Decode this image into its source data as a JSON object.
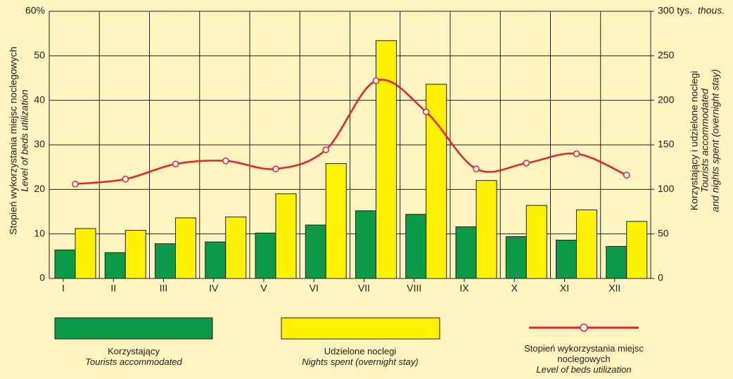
{
  "chart_data": {
    "type": "bar_line",
    "y_title": "Stopień wykorzystania miejsc noclegowych",
    "y_title_en": "Level of beds utilization",
    "y2_title": "Korzystający i udzielone noclegi",
    "y2_title_en": "Tourists accommodated",
    "y2_title_en2": "and nights spent (overnight stay)",
    "y2_unit_en": "thous.",
    "categories": [
      "I",
      "II",
      "III",
      "IV",
      "V",
      "VI",
      "VII",
      "VIII",
      "IX",
      "X",
      "XI",
      "XII"
    ],
    "series": [
      {
        "name": "Korzystający",
        "name_en": "Tourists accommodated",
        "color": "#0a9a48",
        "axis": "y2",
        "values": [
          32,
          29,
          39,
          41,
          51,
          60,
          76,
          72,
          58,
          47,
          43,
          36
        ]
      },
      {
        "name": "Udzielone noclegi",
        "name_en": "Nights spent (overnight stay)",
        "color": "#fff200",
        "axis": "y2",
        "values": [
          56,
          54,
          68,
          69,
          95,
          129,
          267,
          218,
          110,
          82,
          77,
          64
        ]
      },
      {
        "name": "Stopień wykorzystania miejsc noclegowych",
        "name_en": "Level of beds utilization",
        "color": "#e8202a",
        "axis": "y",
        "values": [
          21.2,
          22.3,
          25.7,
          26.4,
          24.6,
          28.9,
          44.4,
          37.4,
          24.6,
          25.9,
          28,
          23.2
        ]
      }
    ],
    "ylim": [
      0,
      60
    ],
    "yticks": [
      0,
      10,
      20,
      30,
      40,
      50,
      {
        "value": 60,
        "label": "60%"
      }
    ],
    "y2lim": [
      0,
      300
    ],
    "y2ticks": [
      0,
      50,
      100,
      150,
      200,
      250,
      {
        "value": 300,
        "label": "300 tys."
      }
    ],
    "grid": true
  }
}
